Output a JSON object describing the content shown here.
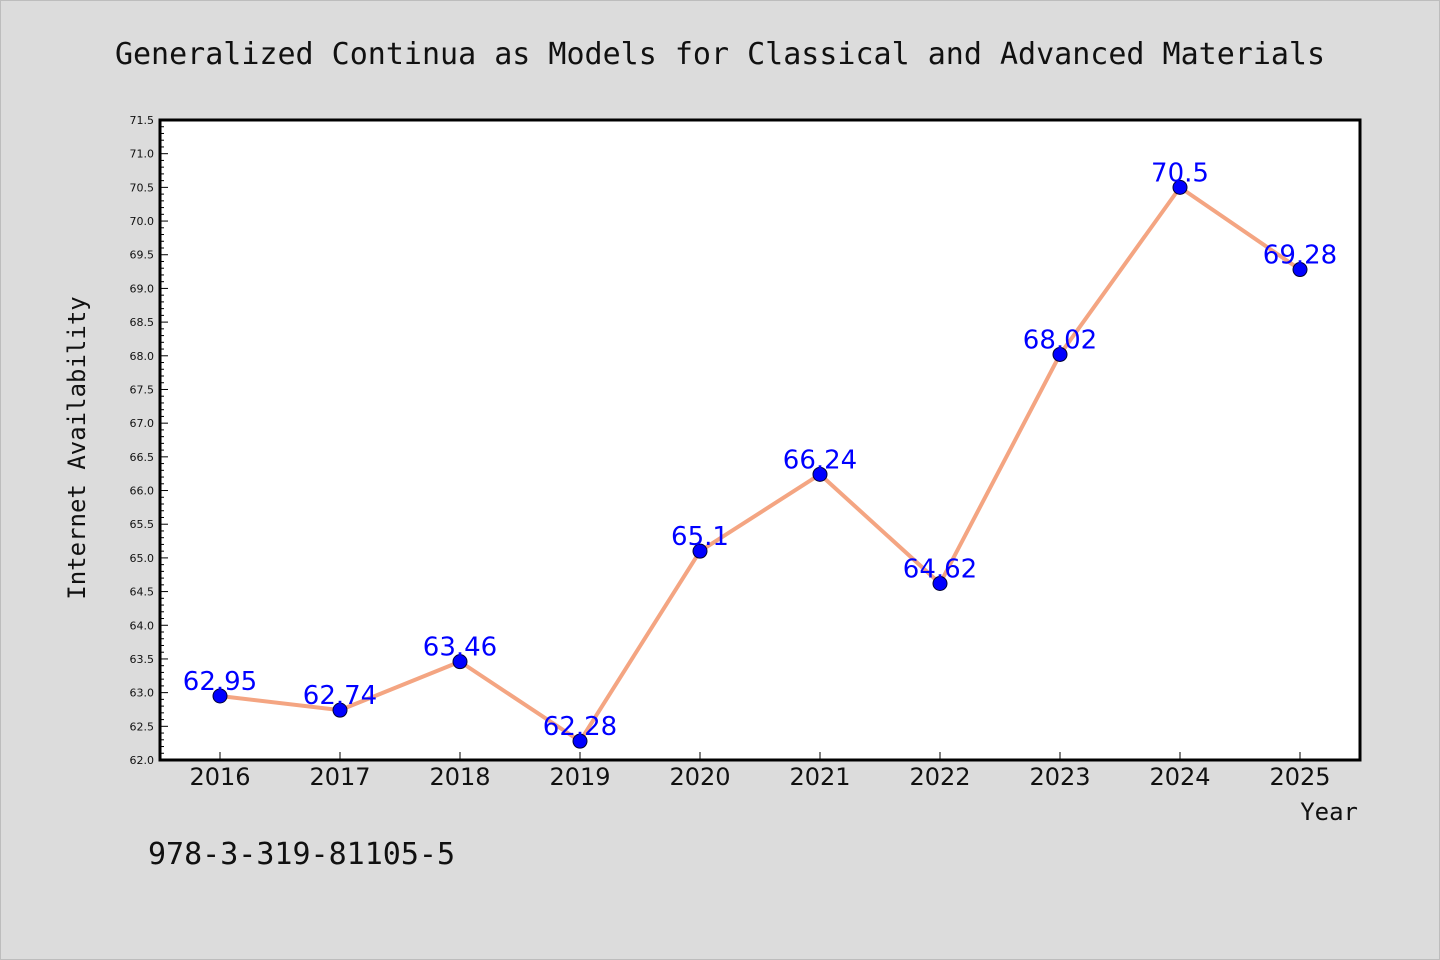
{
  "chart_data": {
    "type": "line",
    "title": "Generalized Continua as Models for Classical and Advanced Materials",
    "xlabel": "Year",
    "ylabel": "Internet Availability",
    "x": [
      "2016",
      "2017",
      "2018",
      "2019",
      "2020",
      "2021",
      "2022",
      "2023",
      "2024",
      "2025"
    ],
    "series": [
      {
        "values": [
          62.95,
          62.74,
          63.46,
          62.28,
          65.1,
          66.24,
          64.62,
          68.02,
          70.5,
          69.28
        ],
        "labels": [
          "62.95",
          "62.74",
          "63.46",
          "62.28",
          "65.1",
          "66.24",
          "64.62",
          "68.02",
          "70.5",
          "69.28"
        ]
      }
    ],
    "ylim": [
      62.0,
      71.5
    ],
    "y_ticks": [
      "62.0",
      "62.5",
      "63.0",
      "63.5",
      "64.0",
      "64.5",
      "65.0",
      "65.5",
      "66.0",
      "66.5",
      "67.0",
      "67.5",
      "68.0",
      "68.5",
      "69.0",
      "69.5",
      "70.0",
      "70.5",
      "71.0",
      "71.5"
    ],
    "grid": false,
    "colors": {
      "line": "#f4a582",
      "marker": "#0000ff",
      "label": "#0000ff",
      "background": "#dcdcdc",
      "plot_background": "#ffffff"
    }
  },
  "footer": {
    "isbn": "978-3-319-81105-5"
  }
}
